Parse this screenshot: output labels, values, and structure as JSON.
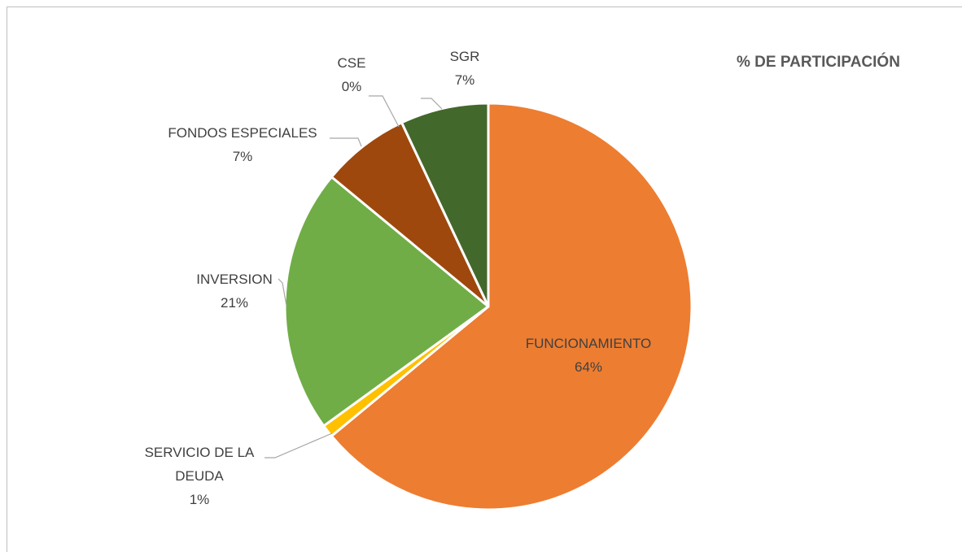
{
  "chart_data": {
    "type": "pie",
    "title": "% DE PARTICIPACIÓN",
    "categories": [
      "FUNCIONAMIENTO",
      "SERVICIO DE LA DEUDA",
      "INVERSION",
      "FONDOS ESPECIALES",
      "CSE",
      "SGR"
    ],
    "values": [
      64,
      1,
      21,
      7,
      0,
      7
    ],
    "value_labels": [
      "64%",
      "1%",
      "21%",
      "7%",
      "0%",
      "7%"
    ],
    "colors": [
      "#ED7D31",
      "#FFC000",
      "#70AD47",
      "#9E480E",
      "#A5A5A5",
      "#43682B"
    ]
  }
}
